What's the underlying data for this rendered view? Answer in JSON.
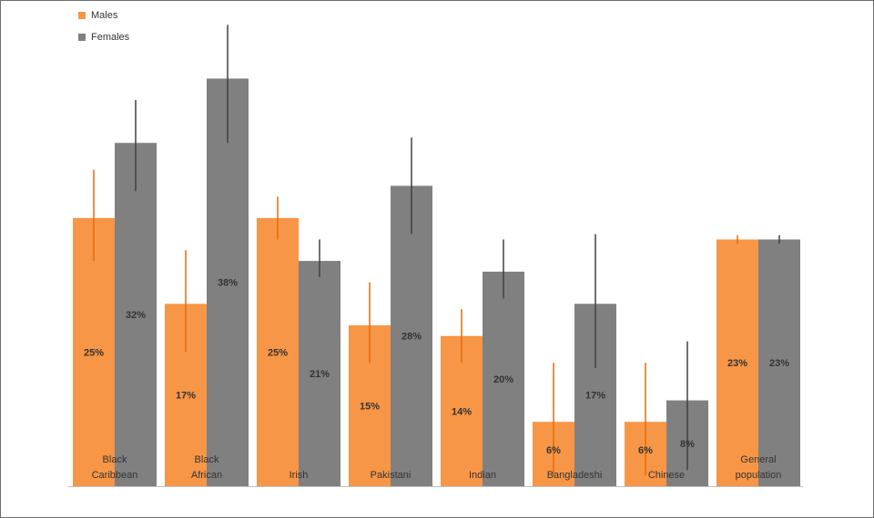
{
  "chart_data": {
    "type": "bar",
    "categories": [
      "Black Caribbean",
      "Black African",
      "Irish",
      "Pakistani",
      "Indian",
      "Bangladeshi",
      "Chinese",
      "General population"
    ],
    "category_lines": [
      [
        "Black",
        "Caribbean"
      ],
      [
        "Black",
        "African"
      ],
      [
        "Irish"
      ],
      [
        "Pakistani"
      ],
      [
        "Indian"
      ],
      [
        "Bangladeshi"
      ],
      [
        "Chinese"
      ],
      [
        "General",
        "population"
      ]
    ],
    "series": [
      {
        "name": "Males",
        "color": "#F79646",
        "values": [
          25,
          17,
          25,
          15,
          14,
          6,
          6,
          23
        ],
        "labels": [
          "25%",
          "17%",
          "25%",
          "15%",
          "14%",
          "6%",
          "6%",
          "23%"
        ],
        "error_low": [
          21,
          12.5,
          23,
          11.5,
          11.5,
          1,
          1,
          22.6
        ],
        "error_high": [
          29.5,
          22,
          27,
          19,
          16.5,
          11.5,
          11.5,
          23.4
        ],
        "error_color": "#E46C0A"
      },
      {
        "name": "Females",
        "color": "#808080",
        "values": [
          32,
          38,
          21,
          28,
          20,
          17,
          8,
          23
        ],
        "labels": [
          "32%",
          "38%",
          "21%",
          "28%",
          "20%",
          "17%",
          "8%",
          "23%"
        ],
        "error_low": [
          27.5,
          32,
          19.5,
          23.5,
          17.5,
          11,
          1.5,
          22.6
        ],
        "error_high": [
          36,
          43,
          23,
          32.5,
          23,
          23.5,
          13.5,
          23.4
        ],
        "error_color": "#404040"
      }
    ],
    "ylim": [
      0,
      43.5
    ],
    "legend": "top-left",
    "grid": false,
    "title": "",
    "xlabel": "",
    "ylabel": ""
  }
}
